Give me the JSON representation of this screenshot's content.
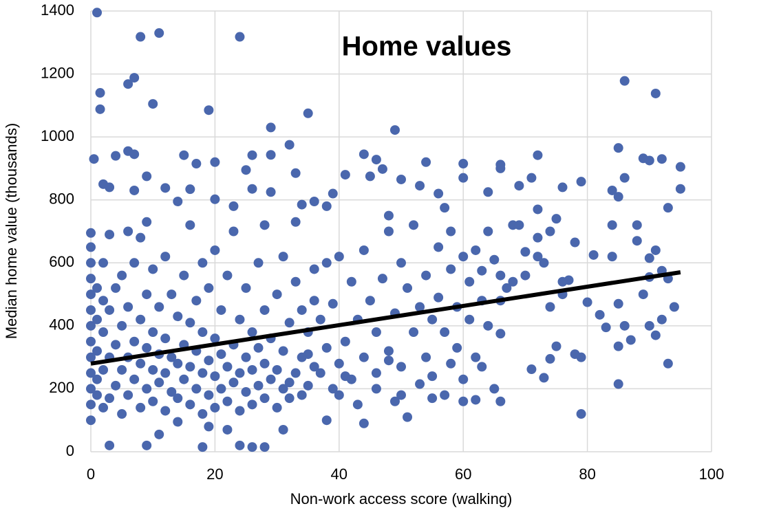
{
  "chart_data": {
    "type": "scatter",
    "title": "Home values",
    "x_label": "Non-work access score (walking)",
    "y_label": "Median home value (thousands)",
    "xlim": [
      0,
      100
    ],
    "xticks": [
      0,
      20,
      40,
      60,
      80,
      100
    ],
    "ylim": [
      0,
      1400
    ],
    "yticks": [
      0,
      200,
      400,
      600,
      800,
      1000,
      1200,
      1400
    ],
    "grid": true,
    "series": [
      {
        "color": "#4a67ad",
        "x": [
          1,
          8,
          11,
          24,
          1.5,
          1.5,
          6,
          7,
          10,
          19,
          29,
          35,
          49,
          86,
          91,
          0.5,
          6,
          7,
          4,
          15,
          17,
          20,
          26,
          29,
          32,
          44,
          46,
          54,
          60,
          66,
          72,
          85,
          89,
          92,
          95,
          90,
          9,
          2,
          3,
          7,
          12,
          14,
          16,
          20,
          23,
          25,
          26,
          29,
          33,
          34,
          36,
          38,
          39,
          41,
          45,
          47,
          48,
          50,
          53,
          56,
          57,
          60,
          64,
          66,
          69,
          71,
          72,
          76,
          79,
          84,
          85,
          86,
          93,
          95,
          58,
          60,
          62,
          63,
          64,
          65,
          66,
          68,
          69,
          70,
          72,
          73,
          74,
          75,
          77,
          78,
          80,
          81,
          82,
          83,
          84,
          84,
          85,
          85,
          86,
          87,
          88,
          88,
          89,
          90,
          90,
          91,
          92,
          92,
          93,
          93,
          94,
          91,
          90,
          85,
          79,
          79,
          78,
          76,
          75,
          74,
          73,
          71,
          66,
          66,
          65,
          63,
          62,
          60,
          60,
          61,
          58,
          57,
          55,
          55,
          53,
          51,
          50,
          49,
          48,
          46,
          44,
          43,
          41,
          40,
          38,
          36,
          35,
          34,
          32,
          31,
          28,
          26,
          24,
          18,
          9,
          3,
          11,
          22,
          19,
          14,
          0,
          0,
          0,
          0,
          0,
          0,
          0,
          0,
          0,
          0,
          0,
          0,
          0,
          1,
          1,
          1,
          1,
          1,
          2,
          2,
          2,
          2,
          2,
          3,
          3,
          3,
          3,
          4,
          4,
          4,
          5,
          5,
          5,
          5,
          6,
          6,
          6,
          6,
          7,
          7,
          7,
          8,
          8,
          8,
          8,
          9,
          9,
          9,
          9,
          10,
          10,
          10,
          10,
          11,
          11,
          11,
          12,
          12,
          12,
          12,
          13,
          13,
          13,
          14,
          14,
          14,
          15,
          15,
          15,
          16,
          16,
          16,
          16,
          17,
          17,
          17,
          18,
          18,
          18,
          18,
          19,
          19,
          19,
          20,
          20,
          20,
          20,
          21,
          21,
          21,
          22,
          22,
          22,
          23,
          23,
          23,
          24,
          24,
          24,
          25,
          25,
          25,
          26,
          26,
          26,
          27,
          27,
          27,
          28,
          28,
          28,
          28,
          29,
          29,
          30,
          30,
          30,
          31,
          31,
          31,
          32,
          32,
          33,
          33,
          33,
          34,
          34,
          35,
          35,
          36,
          36,
          37,
          37,
          38,
          38,
          39,
          39,
          40,
          40,
          41,
          42,
          42,
          43,
          44,
          44,
          45,
          46,
          46,
          47,
          48,
          48,
          49,
          50,
          50,
          51,
          52,
          52,
          53,
          54,
          54,
          55,
          56,
          56,
          57,
          58,
          59,
          59,
          61,
          62,
          63,
          64,
          66,
          67,
          68,
          70,
          72,
          74,
          76
        ],
        "y": [
          1395,
          1318,
          1330,
          1318,
          1140,
          1088,
          1168,
          1188,
          1105,
          1085,
          1030,
          1075,
          1022,
          1178,
          1138,
          930,
          955,
          945,
          940,
          942,
          915,
          920,
          942,
          943,
          975,
          945,
          928,
          920,
          915,
          912,
          942,
          965,
          932,
          930,
          905,
          925,
          875,
          850,
          840,
          830,
          838,
          795,
          834,
          802,
          780,
          895,
          835,
          825,
          885,
          785,
          795,
          780,
          820,
          880,
          875,
          898,
          750,
          865,
          845,
          820,
          775,
          870,
          825,
          900,
          845,
          870,
          770,
          840,
          858,
          830,
          810,
          870,
          775,
          835,
          700,
          620,
          640,
          575,
          700,
          610,
          560,
          720,
          720,
          635,
          680,
          600,
          700,
          740,
          545,
          665,
          475,
          625,
          435,
          395,
          620,
          720,
          470,
          335,
          400,
          355,
          670,
          720,
          500,
          615,
          555,
          640,
          575,
          420,
          550,
          280,
          460,
          370,
          400,
          215,
          120,
          300,
          310,
          540,
          335,
          295,
          235,
          262,
          375,
          160,
          200,
          270,
          165,
          160,
          230,
          420,
          280,
          180,
          170,
          240,
          215,
          110,
          180,
          160,
          290,
          200,
          90,
          150,
          240,
          180,
          100,
          270,
          310,
          180,
          220,
          70,
          15,
          15,
          20,
          15,
          20,
          20,
          55,
          70,
          80,
          95,
          100,
          150,
          200,
          250,
          300,
          350,
          400,
          450,
          500,
          550,
          600,
          650,
          695,
          180,
          230,
          320,
          420,
          520,
          140,
          260,
          380,
          480,
          600,
          170,
          300,
          450,
          690,
          210,
          340,
          520,
          120,
          260,
          400,
          560,
          180,
          300,
          460,
          700,
          230,
          350,
          600,
          140,
          280,
          420,
          680,
          200,
          330,
          500,
          730,
          160,
          260,
          380,
          580,
          220,
          310,
          460,
          130,
          250,
          360,
          620,
          190,
          300,
          500,
          170,
          280,
          430,
          230,
          340,
          560,
          150,
          270,
          410,
          720,
          200,
          320,
          480,
          120,
          250,
          380,
          600,
          180,
          290,
          520,
          140,
          240,
          360,
          640,
          200,
          310,
          450,
          160,
          270,
          560,
          220,
          340,
          700,
          130,
          250,
          420,
          190,
          300,
          520,
          150,
          260,
          380,
          210,
          330,
          600,
          170,
          280,
          450,
          720,
          230,
          360,
          140,
          260,
          500,
          200,
          320,
          620,
          170,
          410,
          250,
          540,
          730,
          300,
          450,
          210,
          380,
          580,
          480,
          250,
          420,
          330,
          600,
          200,
          470,
          280,
          620,
          350,
          230,
          540,
          420,
          300,
          640,
          480,
          250,
          380,
          550,
          320,
          700,
          440,
          270,
          600,
          520,
          380,
          720,
          460,
          300,
          560,
          420,
          650,
          490,
          380,
          580,
          330,
          460,
          540,
          300,
          480,
          400,
          480,
          520,
          540,
          560,
          620,
          460,
          500
        ]
      }
    ],
    "trendline": {
      "color": "#000000",
      "x": [
        0,
        95
      ],
      "y": [
        280,
        570
      ]
    }
  }
}
